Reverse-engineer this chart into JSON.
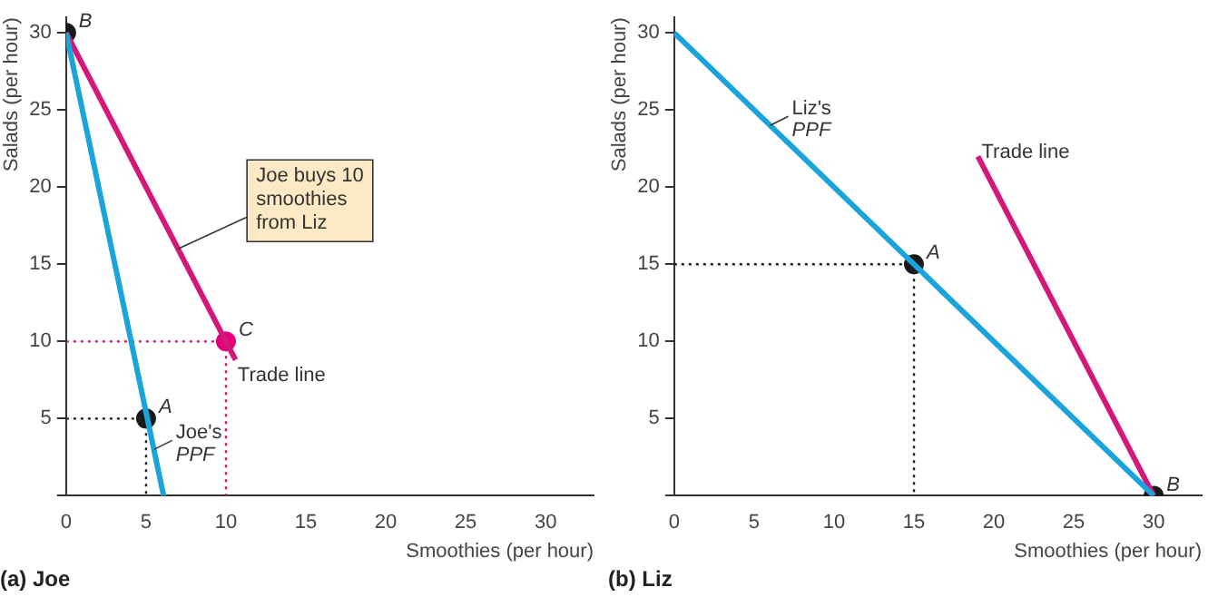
{
  "chart_data": [
    {
      "type": "line",
      "title": "(a) Joe",
      "xlabel": "Smoothies (per hour)",
      "ylabel": "Salads (per hour)",
      "xlim": [
        0,
        33
      ],
      "ylim": [
        0,
        31
      ],
      "xticks": [
        0,
        5,
        10,
        15,
        20,
        25,
        30
      ],
      "yticks": [
        {
          "value": 0,
          "label": null
        },
        5,
        10,
        15,
        20,
        25,
        30
      ],
      "grid": false,
      "legend": false,
      "series": [
        {
          "type": "line",
          "color": "#1ba3dc",
          "x": [
            0,
            6.1
          ],
          "values": [
            30,
            0
          ],
          "marker": "none",
          "line_style": "solid"
        },
        {
          "type": "line",
          "color": "#d4187a",
          "x": [
            0,
            10.6
          ],
          "values": [
            30,
            8.8
          ],
          "marker": "none",
          "line_style": "solid"
        },
        {
          "type": "line",
          "color": "#222222",
          "x": [
            0,
            5,
            5
          ],
          "values": [
            5,
            5,
            0
          ],
          "marker": "none",
          "line_style": "dotted"
        },
        {
          "type": "line",
          "color": "#e6007e",
          "x": [
            0,
            10,
            10
          ],
          "values": [
            10,
            10,
            0
          ],
          "marker": "none",
          "line_style": "dotted"
        },
        {
          "type": "scatter",
          "color": "#1a1a1a",
          "x": [
            0,
            5
          ],
          "values": [
            30,
            5
          ],
          "marker": "circle"
        },
        {
          "type": "scatter",
          "color": "#e6007e",
          "x": [
            10
          ],
          "values": [
            10
          ],
          "marker": "circle"
        }
      ],
      "annotations": [
        {
          "text": "B",
          "x": 0,
          "y": 30
        },
        {
          "text": "A",
          "x": 5,
          "y": 5
        },
        {
          "text": "C",
          "x": 10,
          "y": 10
        },
        {
          "text": "Trade line",
          "x": 10.5,
          "y": 8
        },
        {
          "text": "Joe's PPF",
          "x": 5.5,
          "y": 3
        },
        {
          "text": "Joe buys 10 smoothies from Liz",
          "x": 7,
          "y": 16
        }
      ]
    },
    {
      "type": "line",
      "title": "(b) Liz",
      "xlabel": "Smoothies (per hour)",
      "ylabel": "Salads (per hour)",
      "xlim": [
        0,
        33
      ],
      "ylim": [
        0,
        31
      ],
      "xticks": [
        0,
        5,
        10,
        15,
        20,
        25,
        30
      ],
      "yticks": [
        {
          "value": 0,
          "label": null
        },
        5,
        10,
        15,
        20,
        25,
        30
      ],
      "grid": false,
      "legend": false,
      "series": [
        {
          "type": "line",
          "color": "#1ba3dc",
          "x": [
            0,
            30
          ],
          "values": [
            30,
            0
          ],
          "marker": "none",
          "line_style": "solid"
        },
        {
          "type": "line",
          "color": "#d4187a",
          "x": [
            19,
            30
          ],
          "values": [
            22,
            0
          ],
          "marker": "none",
          "line_style": "solid"
        },
        {
          "type": "line",
          "color": "#222222",
          "x": [
            0,
            15,
            15
          ],
          "values": [
            15,
            15,
            0
          ],
          "marker": "none",
          "line_style": "dotted"
        },
        {
          "type": "scatter",
          "color": "#1a1a1a",
          "x": [
            15,
            30
          ],
          "values": [
            15,
            0
          ],
          "marker": "circle"
        }
      ],
      "annotations": [
        {
          "text": "A",
          "x": 15,
          "y": 15
        },
        {
          "text": "B",
          "x": 30,
          "y": 0
        },
        {
          "text": "Trade line",
          "x": 19,
          "y": 22.5
        },
        {
          "text": "Liz's PPF",
          "x": 6,
          "y": 24
        }
      ]
    }
  ]
}
